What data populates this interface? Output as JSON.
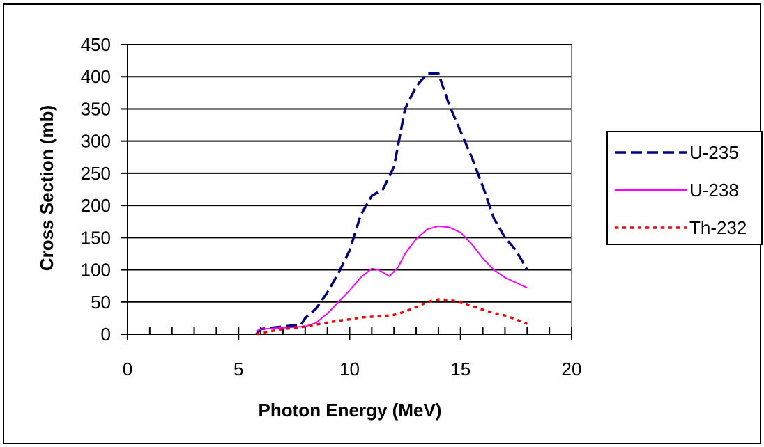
{
  "chart_data": {
    "type": "line",
    "title": "",
    "xlabel": "Photon Energy (MeV)",
    "ylabel": "Cross Section (mb)",
    "xlim": [
      0,
      20
    ],
    "ylim": [
      0,
      450
    ],
    "xticks": [
      0,
      5,
      10,
      15,
      20
    ],
    "yticks": [
      0,
      50,
      100,
      150,
      200,
      250,
      300,
      350,
      400,
      450
    ],
    "grid": "horizontal major lines",
    "legend_position": "right",
    "series": [
      {
        "name": "U-235",
        "color": "#000080",
        "style": "dashed",
        "x": [
          5.8,
          6.0,
          6.5,
          7.0,
          7.5,
          7.8,
          8.0,
          8.5,
          9.0,
          9.5,
          10.0,
          10.5,
          11.0,
          11.5,
          12.0,
          12.5,
          13.0,
          13.5,
          14.0,
          14.5,
          15.0,
          15.5,
          16.0,
          16.5,
          17.0,
          17.5,
          18.0
        ],
        "y": [
          0,
          8,
          10,
          12,
          14,
          14,
          25,
          40,
          65,
          95,
          130,
          185,
          215,
          225,
          260,
          350,
          385,
          405,
          405,
          355,
          315,
          275,
          230,
          180,
          150,
          130,
          100
        ]
      },
      {
        "name": "U-238",
        "color": "#ff00ff",
        "style": "solid",
        "x": [
          5.8,
          6.0,
          6.5,
          7.0,
          7.5,
          8.0,
          8.5,
          9.0,
          9.5,
          10.0,
          10.5,
          11.0,
          11.3,
          11.8,
          12.2,
          12.5,
          13.0,
          13.5,
          14.0,
          14.5,
          15.0,
          15.5,
          16.0,
          16.5,
          17.0,
          17.5,
          18.0
        ],
        "y": [
          5,
          8,
          9,
          10,
          11,
          12,
          18,
          32,
          50,
          68,
          88,
          102,
          100,
          90,
          105,
          125,
          148,
          163,
          168,
          166,
          158,
          140,
          118,
          100,
          88,
          80,
          72
        ]
      },
      {
        "name": "Th-232",
        "color": "#ff0000",
        "style": "dotted",
        "x": [
          5.8,
          6.0,
          6.5,
          7.0,
          7.5,
          8.0,
          8.5,
          9.0,
          9.5,
          10.0,
          10.5,
          11.0,
          11.5,
          12.0,
          12.5,
          13.0,
          13.5,
          14.0,
          14.5,
          15.0,
          15.5,
          16.0,
          16.5,
          17.0,
          17.5,
          18.0
        ],
        "y": [
          0,
          2,
          5,
          8,
          10,
          12,
          15,
          18,
          21,
          23,
          26,
          27,
          28,
          30,
          35,
          42,
          50,
          54,
          53,
          50,
          44,
          38,
          33,
          29,
          23,
          16
        ]
      }
    ]
  }
}
